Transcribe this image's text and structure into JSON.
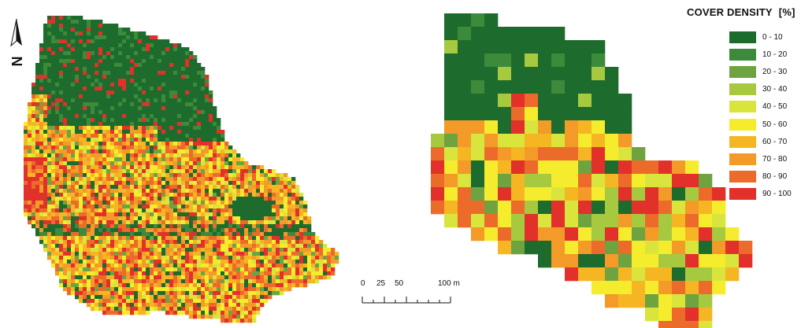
{
  "legend": {
    "title": "COVER DENSITY",
    "unit": "[%]",
    "classes": [
      {
        "label": "0 - 10",
        "color": "#1e6b2e"
      },
      {
        "label": "10 - 20",
        "color": "#3c8a3a"
      },
      {
        "label": "20 - 30",
        "color": "#6ea33f"
      },
      {
        "label": "30 - 40",
        "color": "#a7c93f"
      },
      {
        "label": "40 - 50",
        "color": "#d9e53c"
      },
      {
        "label": "50 - 60",
        "color": "#f6ec2e"
      },
      {
        "label": "60 - 70",
        "color": "#f6b624"
      },
      {
        "label": "70 - 80",
        "color": "#f39a28"
      },
      {
        "label": "80 - 90",
        "color": "#ec6b2a"
      },
      {
        "label": "90 - 100",
        "color": "#e2302a"
      }
    ]
  },
  "scale_bar": {
    "labels": [
      "0",
      "25",
      "50",
      "100 m"
    ]
  },
  "north_arrow": {
    "letter": "N"
  }
}
